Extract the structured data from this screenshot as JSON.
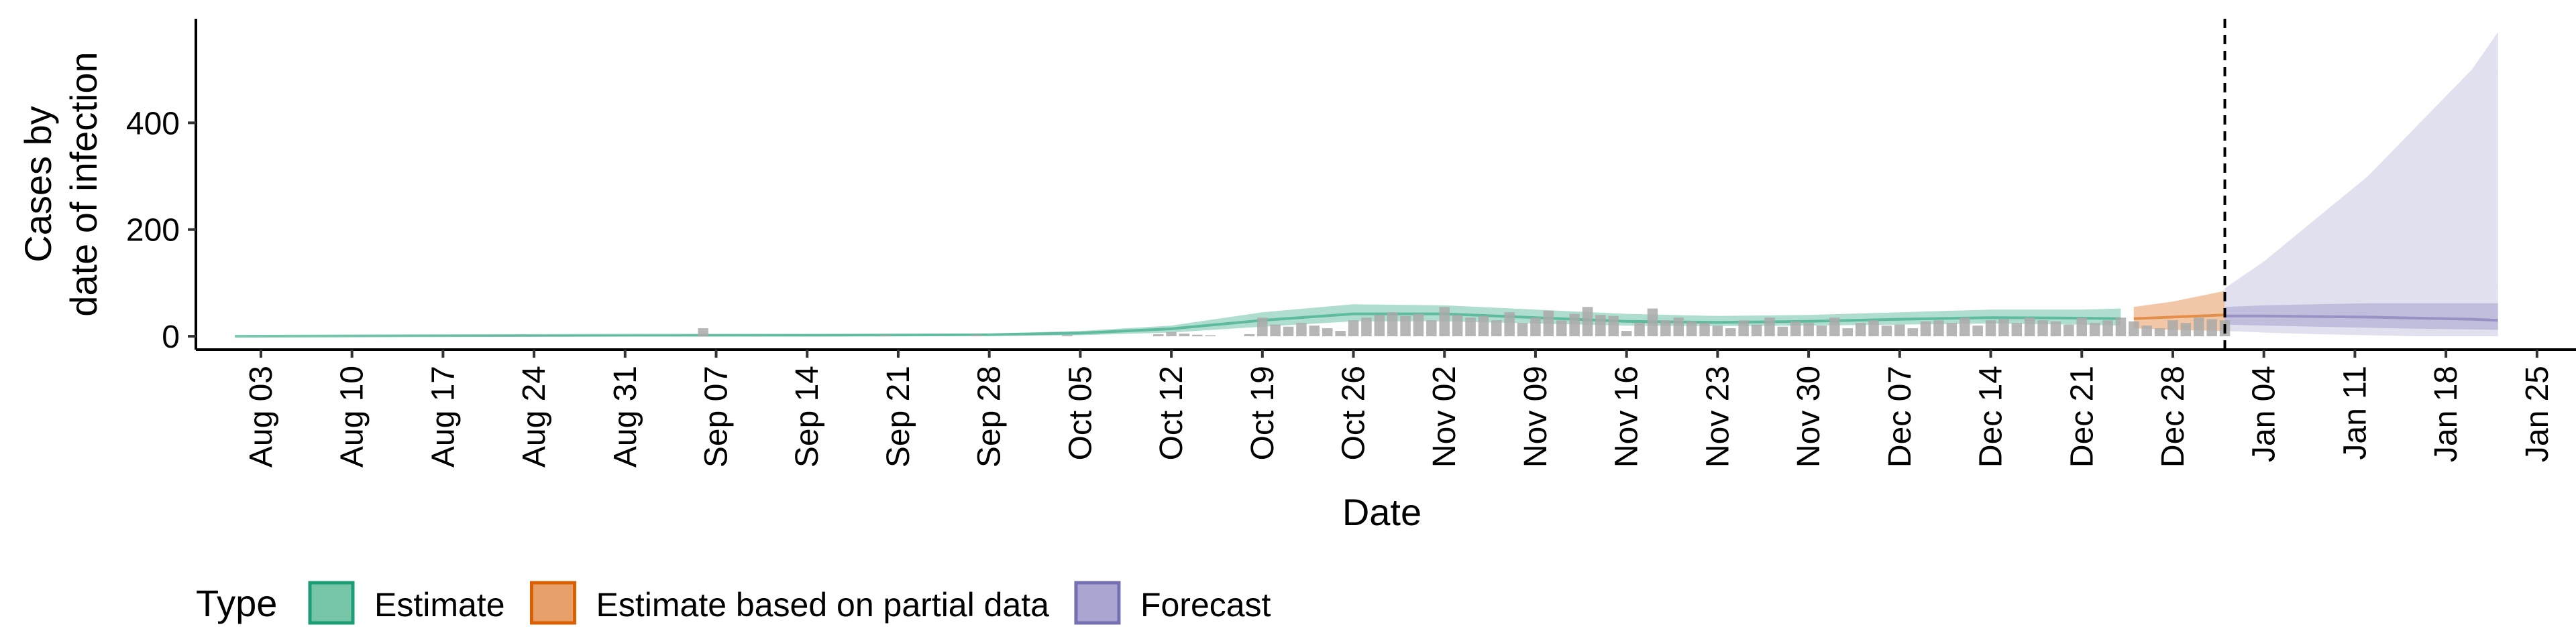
{
  "chart_data": {
    "type": "area",
    "title": "",
    "xlabel": "Date",
    "ylabel": [
      "Cases by",
      "date of infection"
    ],
    "x_ticks": [
      "Aug 03",
      "Aug 10",
      "Aug 17",
      "Aug 24",
      "Aug 31",
      "Sep 07",
      "Sep 14",
      "Sep 21",
      "Sep 28",
      "Oct 05",
      "Oct 12",
      "Oct 19",
      "Oct 26",
      "Nov 02",
      "Nov 09",
      "Nov 16",
      "Nov 23",
      "Nov 30",
      "Dec 07",
      "Dec 14",
      "Dec 21",
      "Dec 28",
      "Jan 04",
      "Jan 11",
      "Jan 18",
      "Jan 25"
    ],
    "y_ticks": [
      0,
      200,
      400
    ],
    "x_range": [
      "2020-07-29",
      "2021-01-28"
    ],
    "ylim": [
      -25,
      595
    ],
    "forecast_start": "2021-01-01",
    "legend": {
      "title": "Type",
      "position": "bottom-left",
      "items": [
        {
          "label": "Estimate",
          "fill": "#75c5a6",
          "stroke": "#1b9e77"
        },
        {
          "label": "Estimate based on partial data",
          "fill": "#e8a06a",
          "stroke": "#d95f02"
        },
        {
          "label": "Forecast",
          "fill": "#aaa5d1",
          "stroke": "#7570b3"
        }
      ]
    },
    "colors": {
      "estimate": "#1b9e77",
      "partial": "#d95f02",
      "forecast": "#7570b3",
      "bars": "#a9a9a9"
    },
    "series": [
      {
        "type": "Estimate",
        "dates": [
          "2020-08-01",
          "2020-08-15",
          "2020-09-01",
          "2020-09-15",
          "2020-09-28",
          "2020-10-05",
          "2020-10-12",
          "2020-10-19",
          "2020-10-26",
          "2020-11-02",
          "2020-11-09",
          "2020-11-16",
          "2020-11-23",
          "2020-11-30",
          "2020-12-07",
          "2020-12-14",
          "2020-12-21",
          "2020-12-24"
        ],
        "median": [
          0,
          1,
          2,
          2,
          3,
          6,
          14,
          30,
          42,
          42,
          35,
          28,
          26,
          28,
          32,
          35,
          34,
          33
        ],
        "lower_90": [
          0,
          0,
          0,
          0,
          1,
          2,
          7,
          18,
          28,
          28,
          24,
          20,
          19,
          20,
          22,
          24,
          22,
          20
        ],
        "upper_90": [
          1,
          2,
          3,
          4,
          5,
          10,
          20,
          45,
          60,
          58,
          50,
          42,
          38,
          40,
          45,
          50,
          50,
          52
        ]
      },
      {
        "type": "Estimate based on partial data",
        "dates": [
          "2020-12-25",
          "2020-12-28",
          "2021-01-01"
        ],
        "median": [
          33,
          36,
          40
        ],
        "lower_90": [
          15,
          12,
          10
        ],
        "upper_90": [
          55,
          65,
          85
        ]
      },
      {
        "type": "Forecast",
        "dates": [
          "2021-01-01",
          "2021-01-04",
          "2021-01-08",
          "2021-01-12",
          "2021-01-16",
          "2021-01-20",
          "2021-01-22"
        ],
        "median": [
          38,
          38,
          37,
          36,
          34,
          32,
          30
        ],
        "lower_90": [
          10,
          7,
          4,
          2,
          0,
          0,
          0
        ],
        "upper_90": [
          90,
          140,
          220,
          300,
          400,
          500,
          570
        ],
        "lower_50": [
          22,
          20,
          18,
          16,
          14,
          13,
          12
        ],
        "upper_50": [
          55,
          58,
          60,
          62,
          62,
          62,
          62
        ]
      }
    ],
    "reported_cases": {
      "dates": [
        "2020-09-06",
        "2020-09-20",
        "2020-09-27",
        "2020-10-04",
        "2020-10-11",
        "2020-10-12",
        "2020-10-13",
        "2020-10-14",
        "2020-10-15",
        "2020-10-18",
        "2020-10-19",
        "2020-10-20",
        "2020-10-21",
        "2020-10-22",
        "2020-10-23",
        "2020-10-24",
        "2020-10-25",
        "2020-10-26",
        "2020-10-27",
        "2020-10-28",
        "2020-10-29",
        "2020-10-30",
        "2020-10-31",
        "2020-11-01",
        "2020-11-02",
        "2020-11-03",
        "2020-11-04",
        "2020-11-05",
        "2020-11-06",
        "2020-11-07",
        "2020-11-08",
        "2020-11-09",
        "2020-11-10",
        "2020-11-11",
        "2020-11-12",
        "2020-11-13",
        "2020-11-14",
        "2020-11-15",
        "2020-11-16",
        "2020-11-17",
        "2020-11-18",
        "2020-11-19",
        "2020-11-20",
        "2020-11-21",
        "2020-11-22",
        "2020-11-23",
        "2020-11-24",
        "2020-11-25",
        "2020-11-26",
        "2020-11-27",
        "2020-11-28",
        "2020-11-29",
        "2020-11-30",
        "2020-12-01",
        "2020-12-02",
        "2020-12-03",
        "2020-12-04",
        "2020-12-05",
        "2020-12-06",
        "2020-12-07",
        "2020-12-08",
        "2020-12-09",
        "2020-12-10",
        "2020-12-11",
        "2020-12-12",
        "2020-12-13",
        "2020-12-14",
        "2020-12-15",
        "2020-12-16",
        "2020-12-17",
        "2020-12-18",
        "2020-12-19",
        "2020-12-20",
        "2020-12-21",
        "2020-12-22",
        "2020-12-23",
        "2020-12-24",
        "2020-12-25",
        "2020-12-26",
        "2020-12-27",
        "2020-12-28",
        "2020-12-29",
        "2020-12-30",
        "2020-12-31",
        "2021-01-01"
      ],
      "values": [
        15,
        2,
        3,
        2,
        4,
        8,
        5,
        3,
        2,
        4,
        35,
        22,
        18,
        25,
        20,
        15,
        10,
        30,
        35,
        40,
        45,
        38,
        42,
        30,
        55,
        40,
        35,
        38,
        30,
        45,
        25,
        35,
        48,
        30,
        42,
        55,
        40,
        38,
        10,
        25,
        52,
        30,
        35,
        28,
        25,
        20,
        15,
        30,
        22,
        35,
        18,
        28,
        25,
        20,
        35,
        15,
        25,
        30,
        20,
        22,
        15,
        28,
        30,
        25,
        35,
        20,
        30,
        32,
        25,
        35,
        30,
        28,
        22,
        35,
        25,
        30,
        35,
        28,
        20,
        15,
        30,
        25,
        35,
        32,
        30
      ]
    }
  }
}
